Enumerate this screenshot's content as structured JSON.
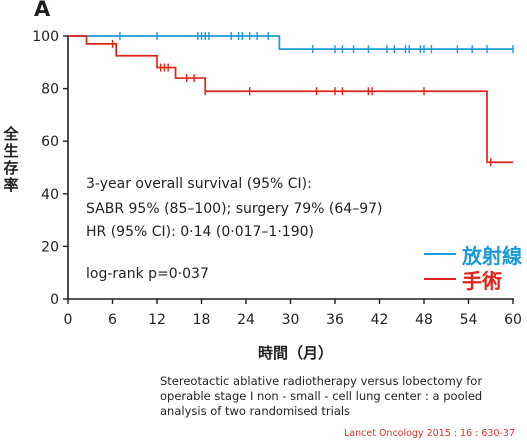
{
  "panel_label": "A",
  "caption": "Stereotactic ablative radiotherapy versus lobectomy for operable stage I non - small - cell lung center : a pooled analysis of two randomised trials",
  "source": "Lancet Oncology 2015 : 16 : 630-37",
  "annotations": [
    "3-year overall survival (95% CI):",
    "SABR 95% (85–100); surgery 79% (64–97)",
    "HR (95% CI): 0·14 (0·017–1·190)",
    "log-rank p=0·037"
  ],
  "colors": {
    "sabr": "#1a9ad6",
    "surgery": "#e2231a",
    "axis": "#231f20"
  },
  "chart_data": {
    "type": "line",
    "subtype": "kaplan-meier",
    "xlabel": "時間（月）",
    "ylabel": "全生存率",
    "xlim": [
      0,
      60
    ],
    "ylim": [
      0,
      100
    ],
    "xticks": [
      0,
      6,
      12,
      18,
      24,
      30,
      36,
      42,
      48,
      54,
      60
    ],
    "yticks": [
      0,
      20,
      40,
      60,
      80,
      100
    ],
    "legend_position": "right",
    "series": [
      {
        "name": "放射線",
        "color": "#1a9ad6",
        "steps": [
          [
            0,
            100
          ],
          [
            28.5,
            95
          ],
          [
            60,
            95
          ]
        ],
        "censored": [
          [
            7,
            100
          ],
          [
            12,
            100
          ],
          [
            17.5,
            100
          ],
          [
            18,
            100
          ],
          [
            18.5,
            100
          ],
          [
            19,
            100
          ],
          [
            22,
            100
          ],
          [
            23,
            100
          ],
          [
            23.5,
            100
          ],
          [
            24.5,
            100
          ],
          [
            25.5,
            100
          ],
          [
            27,
            100
          ],
          [
            33,
            95
          ],
          [
            36,
            95
          ],
          [
            37,
            95
          ],
          [
            38.5,
            95
          ],
          [
            40.5,
            95
          ],
          [
            43,
            95
          ],
          [
            44,
            95
          ],
          [
            45.5,
            95
          ],
          [
            46,
            95
          ],
          [
            47.5,
            95
          ],
          [
            48,
            95
          ],
          [
            49,
            95
          ],
          [
            52.5,
            95
          ],
          [
            54.5,
            95
          ],
          [
            56.5,
            95
          ],
          [
            60,
            95
          ]
        ]
      },
      {
        "name": "手術",
        "color": "#e2231a",
        "steps": [
          [
            0,
            100
          ],
          [
            2.5,
            97
          ],
          [
            6.5,
            92.5
          ],
          [
            12,
            88
          ],
          [
            14.5,
            84
          ],
          [
            18.5,
            79
          ],
          [
            56.5,
            52
          ],
          [
            60,
            52
          ]
        ],
        "censored": [
          [
            6,
            97
          ],
          [
            12.5,
            88
          ],
          [
            13,
            88
          ],
          [
            13.5,
            88
          ],
          [
            16,
            84
          ],
          [
            17,
            84
          ],
          [
            18.5,
            79
          ],
          [
            24.5,
            79
          ],
          [
            33.5,
            79
          ],
          [
            36,
            79
          ],
          [
            37,
            79
          ],
          [
            40.5,
            79
          ],
          [
            41,
            79
          ],
          [
            48,
            79
          ],
          [
            57,
            52
          ]
        ]
      }
    ]
  }
}
